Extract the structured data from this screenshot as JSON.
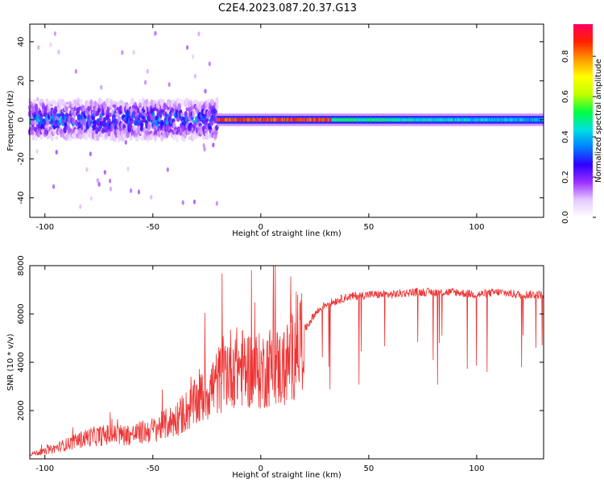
{
  "figure_title": "C2E4.2023.087.20.37.G13",
  "chart_data": [
    {
      "type": "heatmap",
      "xlabel": "Height of straight line (km)",
      "ylabel": "Frequency (Hz)",
      "xlim": [
        -107,
        131
      ],
      "ylim": [
        -50,
        49
      ],
      "xticks": [
        -100,
        -50,
        0,
        50,
        100
      ],
      "yticks": [
        -40,
        -20,
        0,
        20,
        40
      ],
      "grid": false,
      "colorbar": {
        "label": "Normalized spectral amplitude",
        "range": [
          0,
          0.96
        ],
        "ticks": [
          "0.0",
          "0.2",
          "0.4",
          "0.6",
          "0.8"
        ],
        "colors": [
          "#ffffff",
          "#e6c8ff",
          "#9b30ff",
          "#2f00ff",
          "#0080ff",
          "#00e0e0",
          "#00ff40",
          "#c0ff00",
          "#ffff00",
          "#ff9900",
          "#ff2000",
          "#ff0060"
        ]
      },
      "bands": [
        {
          "x_range": [
            -107,
            -20
          ],
          "center_freq": 0,
          "half_width": 6,
          "max_amplitude": 0.35
        },
        {
          "x_range": [
            -20,
            131
          ],
          "center_freq": 0,
          "half_width": 2,
          "max_amplitude": 0.96
        }
      ]
    },
    {
      "type": "line",
      "xlabel": "Height of straight line (km)",
      "ylabel": "SNR (10 * v/v)",
      "xlim": [
        -107,
        131
      ],
      "ylim": [
        0,
        8000
      ],
      "xticks": [
        -100,
        -50,
        0,
        50,
        100
      ],
      "yticks": [
        2000,
        4000,
        6000,
        8000
      ],
      "line_color": "#ee3333",
      "grid": false,
      "series": [
        {
          "x": [
            -107,
            -100,
            -90,
            -80,
            -70,
            -60,
            -50,
            -40,
            -30,
            -20,
            -15,
            -10,
            -5,
            0,
            5,
            10,
            15,
            20,
            25,
            30,
            40,
            50,
            60,
            70,
            80,
            90,
            100,
            110,
            120,
            131
          ],
          "y": [
            200,
            300,
            600,
            900,
            1000,
            1000,
            1200,
            1600,
            2300,
            3200,
            3800,
            3800,
            3700,
            3600,
            3900,
            3700,
            4300,
            5300,
            6000,
            6400,
            6700,
            6800,
            6800,
            6900,
            6900,
            6900,
            6800,
            6900,
            6800,
            6800
          ]
        }
      ]
    }
  ]
}
